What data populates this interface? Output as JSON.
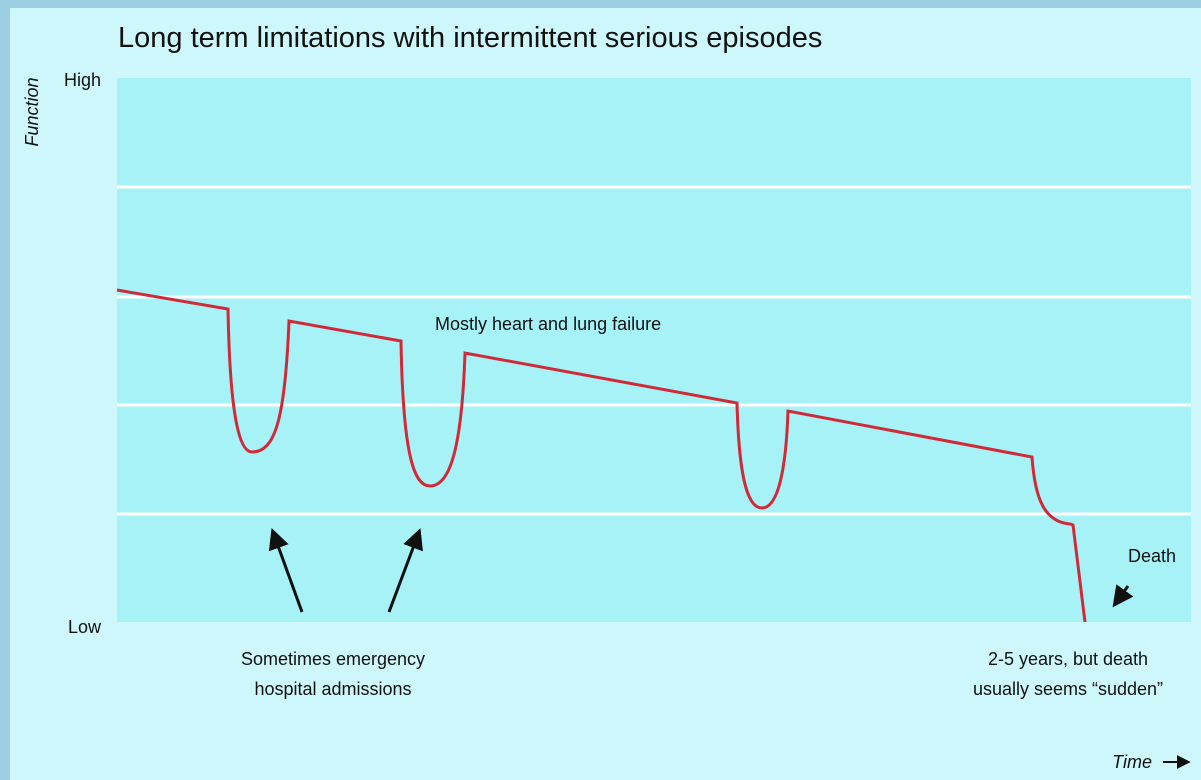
{
  "title": "Long term limitations with intermittent serious episodes",
  "y_axis": {
    "label": "Function",
    "high": "High",
    "low": "Low"
  },
  "x_axis": {
    "label": "Time"
  },
  "annotations": {
    "trajectory": "Mostly heart and lung failure",
    "admissions": [
      "Sometimes emergency",
      "hospital admissions"
    ],
    "death": "Death",
    "duration": [
      "2-5 years, but death",
      "usually seems “sudden”"
    ]
  }
}
